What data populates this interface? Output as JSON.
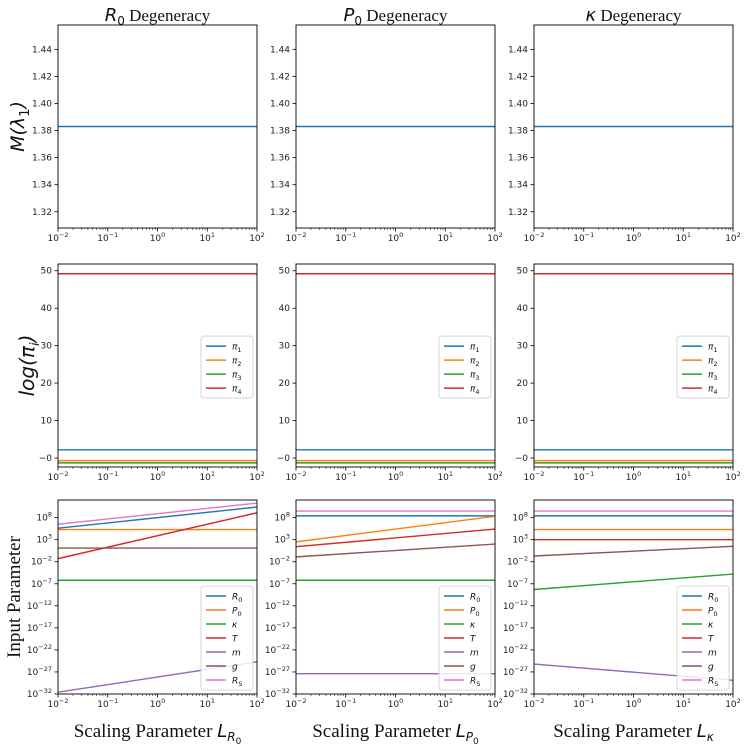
{
  "figure": {
    "ylabels": {
      "row0": {
        "main": "M(λ",
        "sub": "1",
        "tail": ")"
      },
      "row1": {
        "main": "log(π",
        "sub": "i",
        "tail": ")"
      },
      "row2": {
        "main": "Input Parameter"
      }
    },
    "columns": [
      {
        "title": {
          "sym": "R",
          "sub": "0",
          "word": " Degeneracy"
        },
        "xlabel": {
          "text": "Scaling Parameter ",
          "sym": "L",
          "sub": "R",
          "subsub": "0"
        }
      },
      {
        "title": {
          "sym": "P",
          "sub": "0",
          "word": " Degeneracy"
        },
        "xlabel": {
          "text": "Scaling Parameter ",
          "sym": "L",
          "sub": "P",
          "subsub": "0"
        }
      },
      {
        "title": {
          "sym": "κ",
          "sub": "",
          "word": " Degeneracy"
        },
        "xlabel": {
          "text": "Scaling Parameter ",
          "sym": "L",
          "sub": "κ",
          "subsub": ""
        }
      }
    ]
  },
  "chart_data": {
    "type": "line",
    "x_scale": "log",
    "xlim": [
      0.01,
      100
    ],
    "x_ticks": [
      {
        "base": "10",
        "exp": "−2"
      },
      {
        "base": "10",
        "exp": "−1"
      },
      {
        "base": "10",
        "exp": "0"
      },
      {
        "base": "10",
        "exp": "1"
      },
      {
        "base": "10",
        "exp": "2"
      }
    ],
    "colors": {
      "blue": "#1f77b4",
      "orange": "#ff7f0e",
      "green": "#2ca02c",
      "red": "#d62728",
      "purple": "#9467bd",
      "brown": "#8c564b",
      "pink": "#e377c2"
    },
    "rows": [
      {
        "name": "M(λ1)",
        "ylim": [
          1.308,
          1.458
        ],
        "yticks": [
          "1.32",
          "1.34",
          "1.36",
          "1.38",
          "1.40",
          "1.42",
          "1.44"
        ],
        "ytick_values": [
          1.32,
          1.34,
          1.36,
          1.38,
          1.4,
          1.42,
          1.44
        ],
        "legend": null,
        "panels": [
          {
            "series": [
              {
                "name": "M(λ1)",
                "color": "#1f77b4",
                "x": [
                  0.01,
                  100
                ],
                "y": [
                  1.383,
                  1.383
                ]
              }
            ]
          },
          {
            "series": [
              {
                "name": "M(λ1)",
                "color": "#1f77b4",
                "x": [
                  0.01,
                  100
                ],
                "y": [
                  1.383,
                  1.383
                ]
              }
            ]
          },
          {
            "series": [
              {
                "name": "M(λ1)",
                "color": "#1f77b4",
                "x": [
                  0.01,
                  100
                ],
                "y": [
                  1.383,
                  1.383
                ]
              }
            ]
          }
        ]
      },
      {
        "name": "log(πi)",
        "ylim": [
          -2.4,
          51.8
        ],
        "yticks": [
          "−0",
          "10",
          "20",
          "30",
          "40",
          "50"
        ],
        "ytick_values": [
          0,
          10,
          20,
          30,
          40,
          50
        ],
        "legend": {
          "placement": "center-right",
          "entries": [
            {
              "sym": "π",
              "sub": "1",
              "color": "#1f77b4"
            },
            {
              "sym": "π",
              "sub": "2",
              "color": "#ff7f0e"
            },
            {
              "sym": "π",
              "sub": "3",
              "color": "#2ca02c"
            },
            {
              "sym": "π",
              "sub": "4",
              "color": "#d62728"
            }
          ]
        },
        "panels": [
          {
            "series": [
              {
                "name": "π1",
                "color": "#1f77b4",
                "x": [
                  0.01,
                  100
                ],
                "y": [
                  2.2,
                  2.2
                ]
              },
              {
                "name": "π2",
                "color": "#ff7f0e",
                "x": [
                  0.01,
                  100
                ],
                "y": [
                  -0.7,
                  -0.7
                ]
              },
              {
                "name": "π3",
                "color": "#2ca02c",
                "x": [
                  0.01,
                  100
                ],
                "y": [
                  -1.3,
                  -1.3
                ]
              },
              {
                "name": "π4",
                "color": "#d62728",
                "x": [
                  0.01,
                  100
                ],
                "y": [
                  49.2,
                  49.2
                ]
              }
            ]
          },
          {
            "series": [
              {
                "name": "π1",
                "color": "#1f77b4",
                "x": [
                  0.01,
                  100
                ],
                "y": [
                  2.2,
                  2.2
                ]
              },
              {
                "name": "π2",
                "color": "#ff7f0e",
                "x": [
                  0.01,
                  100
                ],
                "y": [
                  -0.7,
                  -0.7
                ]
              },
              {
                "name": "π3",
                "color": "#2ca02c",
                "x": [
                  0.01,
                  100
                ],
                "y": [
                  -1.3,
                  -1.3
                ]
              },
              {
                "name": "π4",
                "color": "#d62728",
                "x": [
                  0.01,
                  100
                ],
                "y": [
                  49.2,
                  49.2
                ]
              }
            ]
          },
          {
            "series": [
              {
                "name": "π1",
                "color": "#1f77b4",
                "x": [
                  0.01,
                  100
                ],
                "y": [
                  2.2,
                  2.2
                ]
              },
              {
                "name": "π2",
                "color": "#ff7f0e",
                "x": [
                  0.01,
                  100
                ],
                "y": [
                  -0.7,
                  -0.7
                ]
              },
              {
                "name": "π3",
                "color": "#2ca02c",
                "x": [
                  0.01,
                  100
                ],
                "y": [
                  -1.3,
                  -1.3
                ]
              },
              {
                "name": "π4",
                "color": "#d62728",
                "x": [
                  0.01,
                  100
                ],
                "y": [
                  49.2,
                  49.2
                ]
              }
            ]
          }
        ]
      },
      {
        "name": "Input Parameter",
        "y_scale": "log10",
        "ylim": [
          -32,
          12
        ],
        "yticks": [
          {
            "base": "10",
            "exp": "8"
          },
          {
            "base": "10",
            "exp": "3"
          },
          {
            "base": "10",
            "exp": "−2"
          },
          {
            "base": "10",
            "exp": "−7"
          },
          {
            "base": "10",
            "exp": "−12"
          },
          {
            "base": "10",
            "exp": "−17"
          },
          {
            "base": "10",
            "exp": "−22"
          },
          {
            "base": "10",
            "exp": "−27"
          },
          {
            "base": "10",
            "exp": "−32"
          }
        ],
        "ytick_values": [
          8,
          3,
          -2,
          -7,
          -12,
          -17,
          -22,
          -27,
          -32
        ],
        "legend": {
          "placement": "lower-right",
          "entries": [
            {
              "sym": "R",
              "sub": "0",
              "color": "#1f77b4"
            },
            {
              "sym": "P",
              "sub": "0",
              "color": "#ff7f0e"
            },
            {
              "sym": "κ",
              "sub": "",
              "color": "#2ca02c"
            },
            {
              "sym": "T",
              "sub": "",
              "color": "#d62728"
            },
            {
              "sym": "m",
              "sub": "",
              "color": "#9467bd"
            },
            {
              "sym": "g",
              "sub": "",
              "color": "#8c564b"
            },
            {
              "sym": "R",
              "sub": "S",
              "color": "#e377c2"
            }
          ]
        },
        "panels": [
          {
            "series": [
              {
                "name": "R0",
                "color": "#1f77b4",
                "x": [
                  0.01,
                  100
                ],
                "log10_y": [
                  5.6,
                  10.4
                ]
              },
              {
                "name": "P0",
                "color": "#ff7f0e",
                "x": [
                  0.01,
                  100
                ],
                "log10_y": [
                  5.3,
                  5.3
                ]
              },
              {
                "name": "κ",
                "color": "#2ca02c",
                "x": [
                  0.01,
                  100
                ],
                "log10_y": [
                  -6.2,
                  -6.2
                ]
              },
              {
                "name": "T",
                "color": "#d62728",
                "x": [
                  0.01,
                  100
                ],
                "log10_y": [
                  -1.3,
                  9.1
                ]
              },
              {
                "name": "m",
                "color": "#9467bd",
                "x": [
                  0.01,
                  100
                ],
                "log10_y": [
                  -31.6,
                  -24.7
                ]
              },
              {
                "name": "g",
                "color": "#8c564b",
                "x": [
                  0.01,
                  100
                ],
                "log10_y": [
                  1.1,
                  1.1
                ]
              },
              {
                "name": "RS",
                "color": "#e377c2",
                "x": [
                  0.01,
                  100
                ],
                "log10_y": [
                  6.5,
                  11.3
                ]
              }
            ]
          },
          {
            "series": [
              {
                "name": "R0",
                "color": "#1f77b4",
                "x": [
                  0.01,
                  100
                ],
                "log10_y": [
                  8.4,
                  8.4
                ]
              },
              {
                "name": "P0",
                "color": "#ff7f0e",
                "x": [
                  0.01,
                  100
                ],
                "log10_y": [
                  2.5,
                  8.3
                ]
              },
              {
                "name": "κ",
                "color": "#2ca02c",
                "x": [
                  0.01,
                  100
                ],
                "log10_y": [
                  -6.2,
                  -6.2
                ]
              },
              {
                "name": "T",
                "color": "#d62728",
                "x": [
                  0.01,
                  100
                ],
                "log10_y": [
                  1.4,
                  5.4
                ]
              },
              {
                "name": "m",
                "color": "#9467bd",
                "x": [
                  0.01,
                  100
                ],
                "log10_y": [
                  -27.4,
                  -27.4
                ]
              },
              {
                "name": "g",
                "color": "#8c564b",
                "x": [
                  0.01,
                  100
                ],
                "log10_y": [
                  -0.9,
                  2.0
                ]
              },
              {
                "name": "RS",
                "color": "#e377c2",
                "x": [
                  0.01,
                  100
                ],
                "log10_y": [
                  9.5,
                  9.5
                ]
              }
            ]
          },
          {
            "series": [
              {
                "name": "R0",
                "color": "#1f77b4",
                "x": [
                  0.01,
                  100
                ],
                "log10_y": [
                  8.4,
                  8.4
                ]
              },
              {
                "name": "P0",
                "color": "#ff7f0e",
                "x": [
                  0.01,
                  100
                ],
                "log10_y": [
                  5.3,
                  5.3
                ]
              },
              {
                "name": "κ",
                "color": "#2ca02c",
                "x": [
                  0.01,
                  100
                ],
                "log10_y": [
                  -8.3,
                  -4.8
                ]
              },
              {
                "name": "T",
                "color": "#d62728",
                "x": [
                  0.01,
                  100
                ],
                "log10_y": [
                  3.0,
                  3.0
                ]
              },
              {
                "name": "m",
                "color": "#9467bd",
                "x": [
                  0.01,
                  100
                ],
                "log10_y": [
                  -25.2,
                  -28.9
                ]
              },
              {
                "name": "g",
                "color": "#8c564b",
                "x": [
                  0.01,
                  100
                ],
                "log10_y": [
                  -0.7,
                  1.5
                ]
              },
              {
                "name": "RS",
                "color": "#e377c2",
                "x": [
                  0.01,
                  100
                ],
                "log10_y": [
                  9.5,
                  9.5
                ]
              }
            ]
          }
        ]
      }
    ]
  }
}
